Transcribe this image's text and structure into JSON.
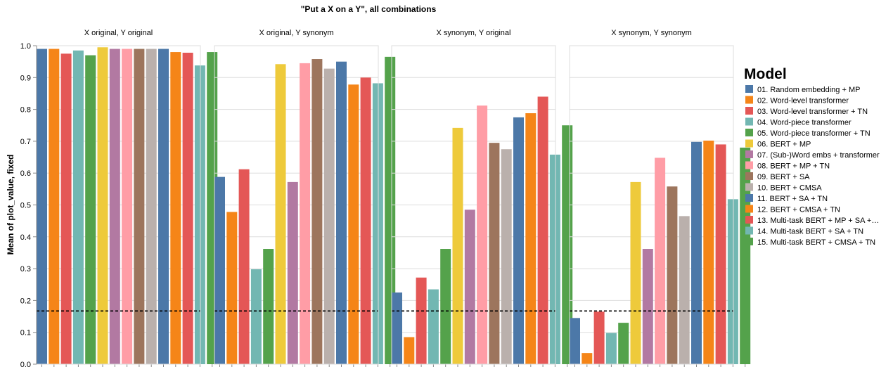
{
  "chart_data": {
    "type": "bar",
    "title": "\"Put a X on a Y\", all combinations",
    "ylabel": "Mean of plot_value, fixed",
    "ylim": [
      0,
      1.0
    ],
    "yticks": [
      "0.0",
      "0.1",
      "0.2",
      "0.3",
      "0.4",
      "0.5",
      "0.6",
      "0.7",
      "0.8",
      "0.9",
      "1.0"
    ],
    "reference_line": 0.167,
    "grid": true,
    "legend": {
      "title": "Model",
      "placement": "right"
    },
    "series": [
      {
        "name": "01. Random embedding + MP",
        "color": "#4c78a8"
      },
      {
        "name": "02. Word-level transformer",
        "color": "#f58518"
      },
      {
        "name": "03. Word-level transformer + TN",
        "color": "#e45756"
      },
      {
        "name": "04. Word-piece transformer",
        "color": "#72b7b2"
      },
      {
        "name": "05. Word-piece transformer + TN",
        "color": "#54a24b"
      },
      {
        "name": "06. BERT + MP",
        "color": "#eeca3b"
      },
      {
        "name": "07. (Sub-)Word embs + transformer",
        "color": "#b279a2"
      },
      {
        "name": "08. BERT + MP + TN",
        "color": "#ff9da6"
      },
      {
        "name": "09. BERT + SA",
        "color": "#9d755d"
      },
      {
        "name": "10. BERT + CMSA",
        "color": "#bab0ac"
      },
      {
        "name": "11. BERT + SA + TN",
        "color": "#4c78a8"
      },
      {
        "name": "12. BERT + CMSA + TN",
        "color": "#f58518"
      },
      {
        "name": "13. Multi-task BERT + MP + SA +…",
        "color": "#e45756"
      },
      {
        "name": "14. Multi-task BERT + SA + TN",
        "color": "#72b7b2"
      },
      {
        "name": "15. Multi-task BERT + CMSA + TN",
        "color": "#54a24b"
      }
    ],
    "facets": [
      {
        "title": "X original, Y original",
        "values": [
          0.99,
          0.99,
          0.975,
          0.985,
          0.97,
          0.995,
          0.99,
          0.99,
          0.99,
          0.99,
          0.99,
          0.98,
          0.978,
          0.938,
          0.98
        ]
      },
      {
        "title": "X original, Y synonym",
        "values": [
          0.588,
          0.478,
          0.612,
          0.298,
          0.362,
          0.942,
          0.572,
          0.945,
          0.958,
          0.928,
          0.95,
          0.878,
          0.9,
          0.882,
          0.965
        ]
      },
      {
        "title": "X synonym, Y original",
        "values": [
          0.225,
          0.085,
          0.272,
          0.235,
          0.362,
          0.742,
          0.485,
          0.812,
          0.695,
          0.675,
          0.775,
          0.788,
          0.84,
          0.658,
          0.75
        ]
      },
      {
        "title": "X synonym, Y synonym",
        "values": [
          0.145,
          0.035,
          0.165,
          0.098,
          0.13,
          0.572,
          0.362,
          0.648,
          0.558,
          0.465,
          0.698,
          0.702,
          0.69,
          0.518,
          0.68
        ]
      }
    ]
  }
}
